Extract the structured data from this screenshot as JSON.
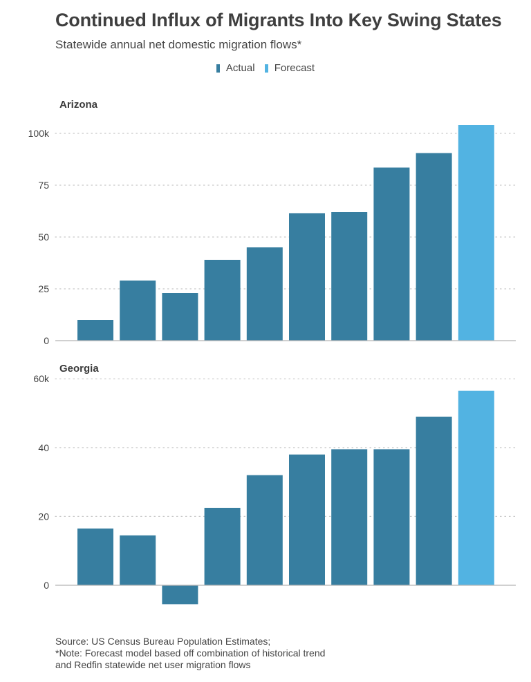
{
  "title": "Continued Influx of Migrants Into Key Swing States",
  "subtitle": "Statewide annual net domestic migration flows*",
  "legend": [
    {
      "label": "Actual",
      "color": "#377ea0"
    },
    {
      "label": "Forecast",
      "color": "#52b3e2"
    }
  ],
  "source": {
    "line1": "Source: US Census Bureau Population Estimates;",
    "line2": "*Note: Forecast model based off combination of historical trend",
    "line3": "and Redfin statewide net user migration flows"
  },
  "colors": {
    "actual": "#377ea0",
    "forecast": "#52b3e2",
    "grid": "#c8c8c8",
    "axis": "#b5b5b5"
  },
  "chart_data": [
    {
      "type": "bar",
      "panel": "Arizona",
      "values": [
        10,
        29,
        23,
        39,
        45,
        61.5,
        62,
        83.5,
        90.5,
        104
      ],
      "kinds": [
        "actual",
        "actual",
        "actual",
        "actual",
        "actual",
        "actual",
        "actual",
        "actual",
        "actual",
        "forecast"
      ],
      "ylim": [
        0,
        110
      ],
      "yticks": [
        0,
        25,
        50,
        75,
        100
      ],
      "ytick_labels": [
        "0",
        "25",
        "50",
        "75",
        "100k"
      ],
      "grid": true
    },
    {
      "type": "bar",
      "panel": "Georgia",
      "values": [
        16.5,
        14.5,
        -5.5,
        22.5,
        32,
        38,
        39.5,
        39.5,
        49,
        56.5
      ],
      "kinds": [
        "actual",
        "actual",
        "actual",
        "actual",
        "actual",
        "actual",
        "actual",
        "actual",
        "actual",
        "forecast"
      ],
      "ylim": [
        -7,
        60
      ],
      "yticks": [
        0,
        20,
        40,
        60
      ],
      "ytick_labels": [
        "0",
        "20",
        "40",
        "60k"
      ],
      "grid": true
    }
  ]
}
